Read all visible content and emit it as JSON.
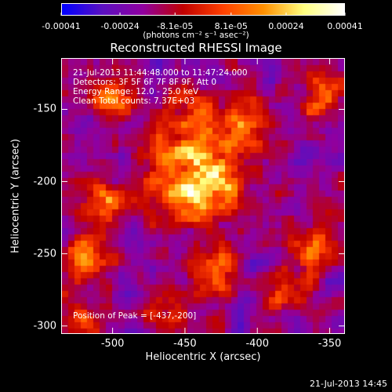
{
  "chart_data": {
    "type": "heatmap",
    "title": "Reconstructed RHESSI Image",
    "xlabel": "Heliocentric X (arcsec)",
    "ylabel": "Heliocentric Y (arcsec)",
    "xlim": [
      -535,
      -340
    ],
    "ylim": [
      -305,
      -115
    ],
    "x_ticks": [
      "-500",
      "-450",
      "-400",
      "-350"
    ],
    "x_tick_values": [
      -500,
      -450,
      -400,
      -350
    ],
    "y_ticks": [
      "-150",
      "-200",
      "-250",
      "-300"
    ],
    "y_tick_values": [
      -150,
      -200,
      -250,
      -300
    ],
    "colorbar": {
      "ticks": [
        "-0.00041",
        "-0.00024",
        "-8.1e-05",
        "8.1e-05",
        "0.00024",
        "0.00041"
      ],
      "tick_values": [
        -0.00041,
        -0.00024,
        -8.1e-05,
        8.1e-05,
        0.00024,
        0.00041
      ],
      "units": "(photons cm⁻² s⁻¹ asec⁻²)",
      "range": [
        -0.00041,
        0.00041
      ],
      "colors": [
        "#0000ff",
        "#5a10c0",
        "#9000a0",
        "#c00000",
        "#ff4000",
        "#ff9000",
        "#ffff80",
        "#ffffff"
      ]
    },
    "grid": false,
    "info_lines": [
      "21-Jul-2013 11:44:48.000 to 11:47:24.000",
      "Detectors: 3F 5F 6F 7F 8F 9F, Att 0",
      "Energy Range: 12.0 - 25.0 keV",
      "Clean     Total counts: 7.37E+03"
    ],
    "peak_label": "Position of Peak = [-437,-200]",
    "peak": [
      -437,
      -200
    ],
    "bright_regions": [
      {
        "x": -440,
        "y": -198,
        "intensity": 1.0
      },
      {
        "x": -505,
        "y": -215,
        "intensity": 0.65
      },
      {
        "x": -500,
        "y": -143,
        "intensity": 0.55
      },
      {
        "x": -355,
        "y": -142,
        "intensity": 0.62
      },
      {
        "x": -410,
        "y": -160,
        "intensity": 0.5
      },
      {
        "x": -445,
        "y": -150,
        "intensity": 0.45
      },
      {
        "x": -362,
        "y": -245,
        "intensity": 0.55
      },
      {
        "x": -520,
        "y": -255,
        "intensity": 0.55
      },
      {
        "x": -430,
        "y": -262,
        "intensity": 0.5
      },
      {
        "x": -380,
        "y": -275,
        "intensity": 0.45
      },
      {
        "x": -520,
        "y": -295,
        "intensity": 0.4
      },
      {
        "x": -460,
        "y": -290,
        "intensity": 0.35
      }
    ]
  },
  "timestamp": "21-Jul-2013 14:45"
}
